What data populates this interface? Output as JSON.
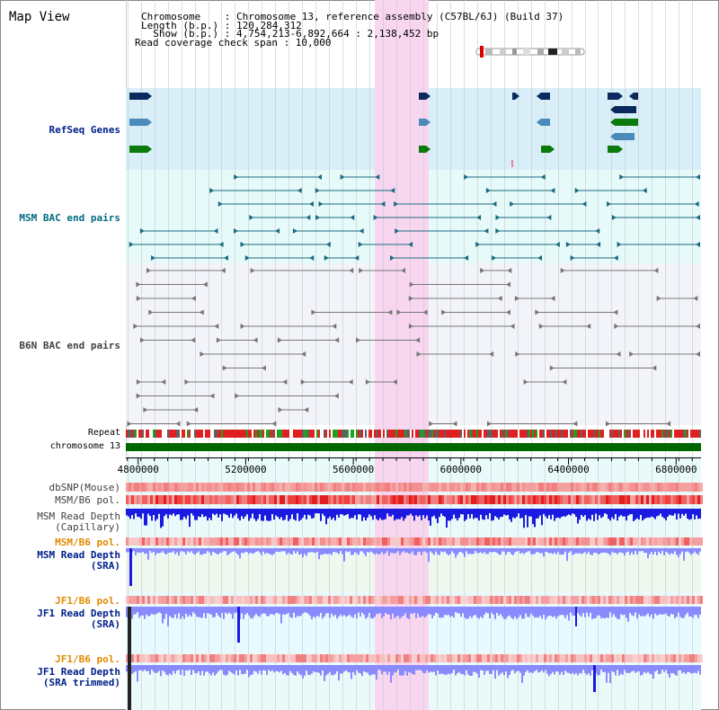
{
  "page_title": "Map View",
  "header": {
    "chromosome_line": "Chromosome    : Chromosome 13, reference assembly (C57BL/6J) (Build 37)",
    "length_line": "Length (b.p.) : 120,284,312",
    "show_line": "  Show (b.p.) : 4,754,213-6,892,664 : 2,138,452 bp",
    "coverage_line": "Read coverage check span : 10,000"
  },
  "tracks": {
    "refseq": "RefSeq Genes",
    "msm_bac": "MSM BAC end pairs",
    "b6n_bac": "B6N BAC end pairs",
    "repeat": "Repeat",
    "chromosome": "chromosome 13",
    "dbsnp": "dbSNP(Mouse)",
    "msm_b6_pol_1": "MSM/B6 pol.",
    "msm_depth_cap_1": "MSM Read Depth",
    "msm_depth_cap_2": "(Capillary)",
    "msm_b6_pol_2": "MSM/B6 pol.",
    "msm_depth_sra_1": "MSM Read Depth",
    "msm_depth_sra_2": "(SRA)",
    "jf1_b6_pol_1": "JF1/B6 pol.",
    "jf1_depth_sra_1": "JF1 Read Depth",
    "jf1_depth_sra_2": "(SRA)",
    "jf1_b6_pol_2": "JF1/B6 pol.",
    "jf1_depth_trim_1": "JF1 Read Depth",
    "jf1_depth_trim_2": "(SRA trimmed)"
  },
  "axis": {
    "ticks": [
      "4800000",
      "5200000",
      "5600000",
      "6000000",
      "6400000",
      "6800000"
    ],
    "tick_values": [
      4800000,
      5200000,
      5600000,
      6000000,
      6400000,
      6800000
    ],
    "range": [
      4754213,
      6892664
    ]
  },
  "highlight_range": [
    5680000,
    5880000
  ],
  "colors": {
    "refseq_bg": "#d8eef8",
    "msm_bg": "#e6fafa",
    "b6n_bg": "#f2f4fa",
    "highlight": "#f8d6f0",
    "gene_navy": "#0a2a5e",
    "gene_steel": "#4a8ab8",
    "gene_green": "#0a7a0a",
    "msm_bac": "#1a6b80",
    "b6n_bac": "#777777",
    "chrom": "#006600",
    "label_navy": "#00208a",
    "label_teal": "#006b80",
    "label_orange": "#e08a00",
    "label_gray": "#404040",
    "depth_blue": "#1a1ae0",
    "depth_light": "#8a8aff"
  }
}
